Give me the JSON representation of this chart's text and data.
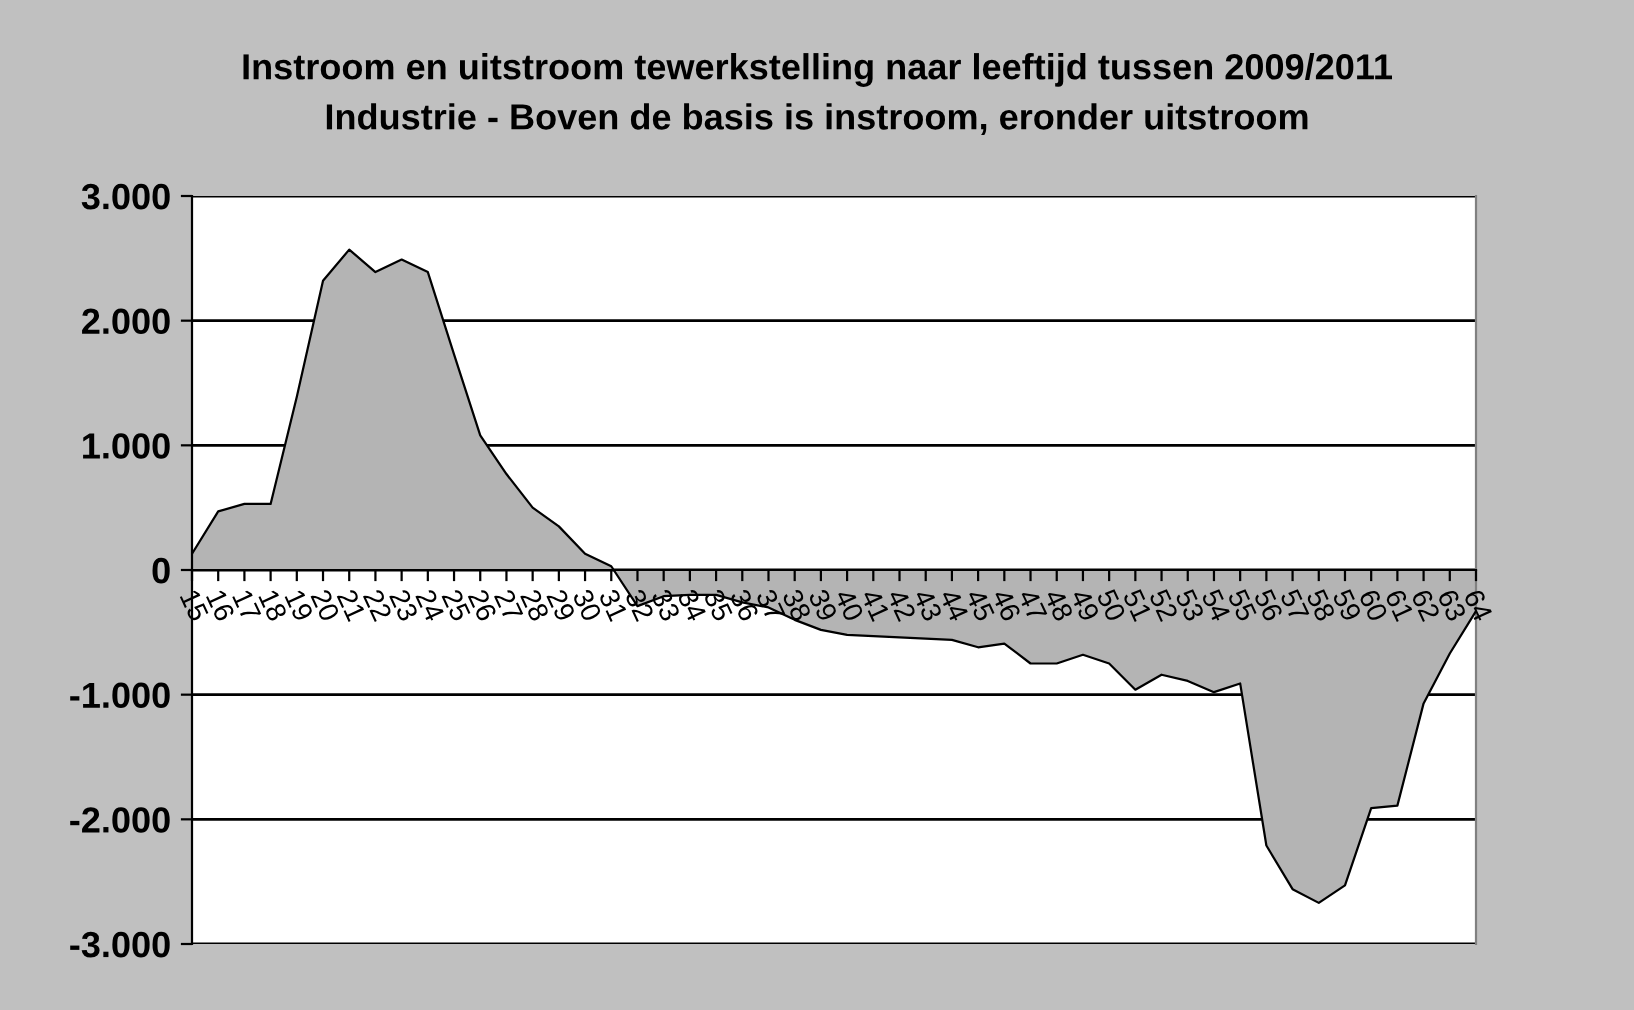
{
  "chart_data": {
    "type": "area",
    "title": "Instroom en uitstroom tewerkstelling naar leeftijd tussen 2009/2011",
    "subtitle": "Industrie - Boven de basis is instroom, eronder uitstroom",
    "categories": [
      "15",
      "16",
      "17",
      "18",
      "19",
      "20",
      "21",
      "22",
      "23",
      "24",
      "25",
      "26",
      "27",
      "28",
      "29",
      "30",
      "31",
      "32",
      "33",
      "34",
      "35",
      "36",
      "37",
      "38",
      "39",
      "40",
      "41",
      "42",
      "43",
      "44",
      "45",
      "46",
      "47",
      "48",
      "49",
      "50",
      "51",
      "52",
      "53",
      "54",
      "55",
      "56",
      "57",
      "58",
      "59",
      "60",
      "61",
      "62",
      "63",
      "64"
    ],
    "series": [
      {
        "color": "#b4b4b4",
        "values": [
          130,
          470,
          530,
          530,
          1390,
          2320,
          2570,
          2390,
          2490,
          2390,
          1730,
          1080,
          770,
          500,
          350,
          130,
          30,
          -290,
          -210,
          -200,
          -200,
          -260,
          -300,
          -400,
          -480,
          -520,
          -530,
          -540,
          -550,
          -560,
          -620,
          -590,
          -750,
          -750,
          -680,
          -750,
          -960,
          -840,
          -890,
          -980,
          -910,
          -2210,
          -2560,
          -2670,
          -2530,
          -1910,
          -1890,
          -1070,
          -670,
          -330
        ]
      }
    ],
    "ylim": [
      -3000,
      3000
    ],
    "yticks": [
      {
        "value": -3000,
        "label": "-3.000"
      },
      {
        "value": -2000,
        "label": "-2.000"
      },
      {
        "value": -1000,
        "label": "-1.000"
      },
      0,
      {
        "value": 1000,
        "label": "1.000"
      },
      {
        "value": 2000,
        "label": "2.000"
      },
      {
        "value": 3000,
        "label": "3.000"
      }
    ],
    "grid": "y",
    "legend": false
  }
}
